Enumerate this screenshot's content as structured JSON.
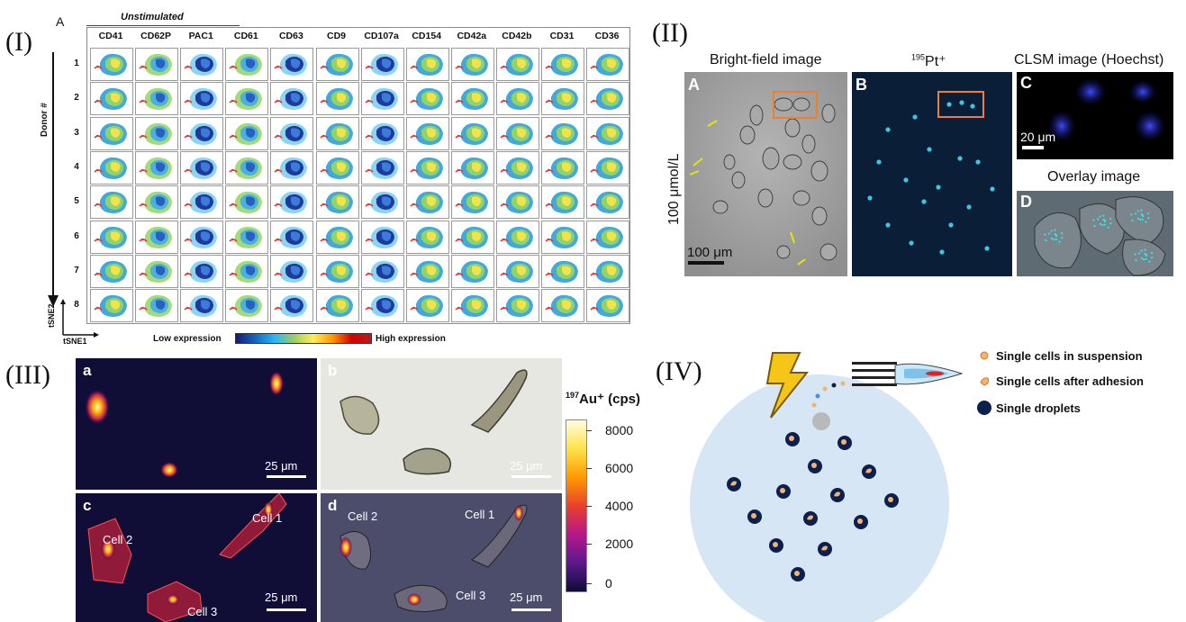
{
  "panel_i": {
    "roman": "(I)",
    "letter": "A",
    "condition": "Unstimulated",
    "markers": [
      "CD41",
      "CD62P",
      "PAC1",
      "CD61",
      "CD63",
      "CD9",
      "CD107a",
      "CD154",
      "CD42a",
      "CD42b",
      "CD31",
      "CD36"
    ],
    "donors": [
      "1",
      "2",
      "3",
      "4",
      "5",
      "6",
      "7",
      "8"
    ],
    "donor_axis_label": "Donor #",
    "tsne_y": "tSNE2",
    "tsne_x": "tSNE1",
    "low_label": "Low  expression",
    "high_label": "High expression",
    "colors": {
      "low": "#1a237e",
      "mid": "#4fc3f7",
      "yellow": "#ffee58",
      "high": "#d50000"
    }
  },
  "panel_ii": {
    "roman": "(II)",
    "title_a": "Bright-field image",
    "title_b_sup": "195",
    "title_b_main": "Pt⁺",
    "title_c": "CLSM image (Hoechst)",
    "title_d": "Overlay image",
    "label_a": "A",
    "label_b": "B",
    "label_c": "C",
    "label_d": "D",
    "concentration": "100 μmol/L",
    "scale_a": "100 μm",
    "scale_c": "20 μm",
    "box_color": "#f07f2c"
  },
  "panel_iii": {
    "roman": "(III)",
    "label_a": "a",
    "label_b": "b",
    "label_c": "c",
    "label_d": "d",
    "scale": "25 μm",
    "cells": [
      "Cell 1",
      "Cell 2",
      "Cell 3"
    ],
    "colorbar_sup": "197",
    "colorbar_main": "Au⁺ (cps)",
    "colorbar_ticks": [
      "8000",
      "6000",
      "4000",
      "2000",
      "0"
    ]
  },
  "panel_iv": {
    "roman": "(IV)",
    "legend": [
      "Single cells in suspension",
      "Single cells after adhesion",
      "Single droplets"
    ],
    "colors": {
      "plate": "#d6e6f5",
      "droplet": "#0c1f4f",
      "cell": "#f6b26b"
    }
  }
}
